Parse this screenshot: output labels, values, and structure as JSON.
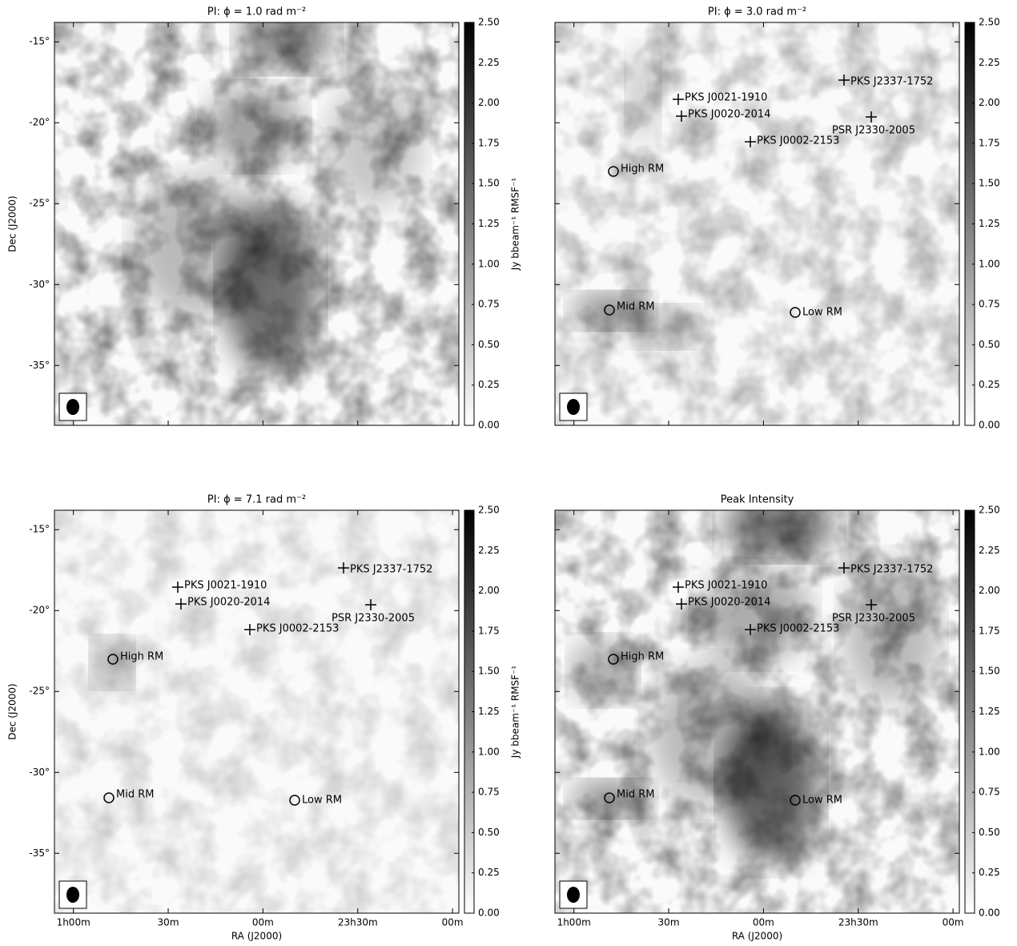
{
  "chart_data": [
    {
      "type": "image",
      "title": "PI: ϕ = 1.0 rad m⁻²",
      "ylabel": "Dec (J2000)",
      "xlim": [
        66,
        -62
      ],
      "ylim": [
        -38.7,
        -13.8
      ],
      "yticks": [
        {
          "value": -15,
          "label": "-15°"
        },
        {
          "value": -20,
          "label": "-20°"
        },
        {
          "value": -25,
          "label": "-25°"
        },
        {
          "value": -30,
          "label": "-30°"
        },
        {
          "value": -35,
          "label": "-35°"
        }
      ],
      "colorbar": {
        "label": "Jy bbeam⁻¹ RMSF⁻¹",
        "clim": [
          0,
          2.5
        ],
        "ticks": [
          {
            "value": 0,
            "label": "0.00"
          },
          {
            "value": 0.25,
            "label": "0.25"
          },
          {
            "value": 0.5,
            "label": "0.50"
          },
          {
            "value": 0.75,
            "label": "0.75"
          },
          {
            "value": 1,
            "label": "1.00"
          },
          {
            "value": 1.25,
            "label": "1.25"
          },
          {
            "value": 1.5,
            "label": "1.50"
          },
          {
            "value": 1.75,
            "label": "1.75"
          },
          {
            "value": 2,
            "label": "2.00"
          },
          {
            "value": 2.25,
            "label": "2.25"
          },
          {
            "value": 2.5,
            "label": "2.50"
          }
        ]
      }
    },
    {
      "type": "image",
      "title": "PI: ϕ = 3.0 rad m⁻²",
      "xlim": [
        66,
        -62
      ],
      "ylim": [
        -38.7,
        -13.8
      ],
      "colorbar": {
        "clim": [
          0,
          2.5
        ],
        "ticks": [
          {
            "value": 0,
            "label": "0.00"
          },
          {
            "value": 0.25,
            "label": "0.25"
          },
          {
            "value": 0.5,
            "label": "0.50"
          },
          {
            "value": 0.75,
            "label": "0.75"
          },
          {
            "value": 1,
            "label": "1.00"
          },
          {
            "value": 1.25,
            "label": "1.25"
          },
          {
            "value": 1.5,
            "label": "1.50"
          },
          {
            "value": 1.75,
            "label": "1.75"
          },
          {
            "value": 2,
            "label": "2.00"
          },
          {
            "value": 2.25,
            "label": "2.25"
          },
          {
            "value": 2.5,
            "label": "2.50"
          }
        ]
      },
      "markers": [
        {
          "label": "PKS J0021-1910",
          "marker": "cross"
        },
        {
          "label": "PKS J0020-2014",
          "marker": "cross"
        },
        {
          "label": "PKS J0002-2153",
          "marker": "cross"
        },
        {
          "label": "PKS J2337-1752",
          "marker": "cross"
        },
        {
          "label": "PSR J2330-2005",
          "marker": "cross"
        },
        {
          "label": "High RM",
          "marker": "circle"
        },
        {
          "label": "Mid RM",
          "marker": "circle"
        },
        {
          "label": "Low RM",
          "marker": "circle"
        }
      ]
    },
    {
      "type": "image",
      "title": "PI: ϕ = 7.1 rad m⁻²",
      "ylabel": "Dec (J2000)",
      "xlabel": "RA (J2000)",
      "xlim": [
        66,
        -62
      ],
      "ylim": [
        -38.7,
        -13.8
      ],
      "xticks": [
        {
          "value": 60,
          "label": "1h00m"
        },
        {
          "value": 30,
          "label": "30m"
        },
        {
          "value": 0,
          "label": "00m"
        },
        {
          "value": -30,
          "label": "23h30m"
        },
        {
          "value": -60,
          "label": "00m"
        }
      ],
      "yticks": [
        {
          "value": -15,
          "label": "-15°"
        },
        {
          "value": -20,
          "label": "-20°"
        },
        {
          "value": -25,
          "label": "-25°"
        },
        {
          "value": -30,
          "label": "-30°"
        },
        {
          "value": -35,
          "label": "-35°"
        }
      ],
      "colorbar": {
        "label": "Jy bbeam⁻¹ RMSF⁻¹",
        "clim": [
          0,
          2.5
        ],
        "ticks": [
          {
            "value": 0,
            "label": "0.00"
          },
          {
            "value": 0.25,
            "label": "0.25"
          },
          {
            "value": 0.5,
            "label": "0.50"
          },
          {
            "value": 0.75,
            "label": "0.75"
          },
          {
            "value": 1,
            "label": "1.00"
          },
          {
            "value": 1.25,
            "label": "1.25"
          },
          {
            "value": 1.5,
            "label": "1.50"
          },
          {
            "value": 1.75,
            "label": "1.75"
          },
          {
            "value": 2,
            "label": "2.00"
          },
          {
            "value": 2.25,
            "label": "2.25"
          },
          {
            "value": 2.5,
            "label": "2.50"
          }
        ]
      },
      "markers": [
        {
          "label": "PKS J0021-1910",
          "marker": "cross"
        },
        {
          "label": "PKS J0020-2014",
          "marker": "cross"
        },
        {
          "label": "PKS J0002-2153",
          "marker": "cross"
        },
        {
          "label": "PKS J2337-1752",
          "marker": "cross"
        },
        {
          "label": "PSR J2330-2005",
          "marker": "cross"
        },
        {
          "label": "High RM",
          "marker": "circle"
        },
        {
          "label": "Mid RM",
          "marker": "circle"
        },
        {
          "label": "Low RM",
          "marker": "circle"
        }
      ]
    },
    {
      "type": "image",
      "title": "Peak Intensity",
      "xlabel": "RA (J2000)",
      "xlim": [
        66,
        -62
      ],
      "ylim": [
        -38.7,
        -13.8
      ],
      "xticks": [
        {
          "value": 60,
          "label": "1h00m"
        },
        {
          "value": 30,
          "label": "30m"
        },
        {
          "value": 0,
          "label": "00m"
        },
        {
          "value": -30,
          "label": "23h30m"
        },
        {
          "value": -60,
          "label": "00m"
        }
      ],
      "colorbar": {
        "clim": [
          0,
          2.5
        ],
        "ticks": [
          {
            "value": 0,
            "label": "0.00"
          },
          {
            "value": 0.25,
            "label": "0.25"
          },
          {
            "value": 0.5,
            "label": "0.50"
          },
          {
            "value": 0.75,
            "label": "0.75"
          },
          {
            "value": 1,
            "label": "1.00"
          },
          {
            "value": 1.25,
            "label": "1.25"
          },
          {
            "value": 1.5,
            "label": "1.50"
          },
          {
            "value": 1.75,
            "label": "1.75"
          },
          {
            "value": 2,
            "label": "2.00"
          },
          {
            "value": 2.25,
            "label": "2.25"
          },
          {
            "value": 2.5,
            "label": "2.50"
          }
        ]
      },
      "markers": [
        {
          "label": "PKS J0021-1910",
          "marker": "cross"
        },
        {
          "label": "PKS J0020-2014",
          "marker": "cross"
        },
        {
          "label": "PKS J0002-2153",
          "marker": "cross"
        },
        {
          "label": "PKS J2337-1752",
          "marker": "cross"
        },
        {
          "label": "PSR J2330-2005",
          "marker": "cross"
        },
        {
          "label": "High RM",
          "marker": "circle"
        },
        {
          "label": "Mid RM",
          "marker": "circle"
        },
        {
          "label": "Low RM",
          "marker": "circle"
        }
      ]
    }
  ]
}
